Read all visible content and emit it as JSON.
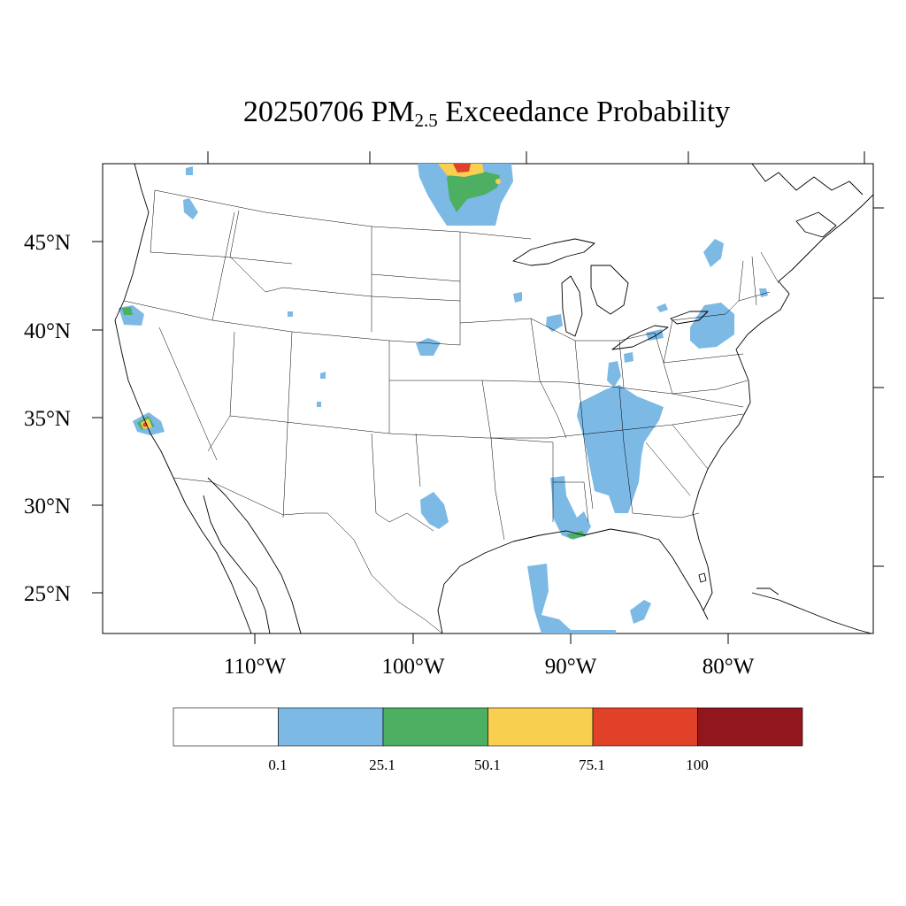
{
  "title": {
    "date": "20250706",
    "pm": "PM",
    "pm_sub": "2.5",
    "rest": "Exceedance Probability"
  },
  "axes": {
    "lat_labels": [
      "45°N",
      "40°N",
      "35°N",
      "30°N",
      "25°N"
    ],
    "lon_labels": [
      "110°W",
      "100°W",
      "90°W",
      "80°W"
    ]
  },
  "colorbar": {
    "colors": [
      "#ffffff",
      "#7cb9e5",
      "#4caf62",
      "#f9cf50",
      "#e24129",
      "#92171c"
    ],
    "labels": [
      "0.1",
      "25.1",
      "50.1",
      "75.1",
      "100"
    ]
  },
  "regions": [
    {
      "name": "north-dakota-canada-plume",
      "category": "0.1-25.1"
    },
    {
      "name": "tennessee-alabama-plume",
      "category": "0.1-25.1"
    },
    {
      "name": "northeast-plume",
      "category": "0.1-25.1"
    },
    {
      "name": "southern-california-hotspot",
      "category": "75.1-100"
    }
  ]
}
